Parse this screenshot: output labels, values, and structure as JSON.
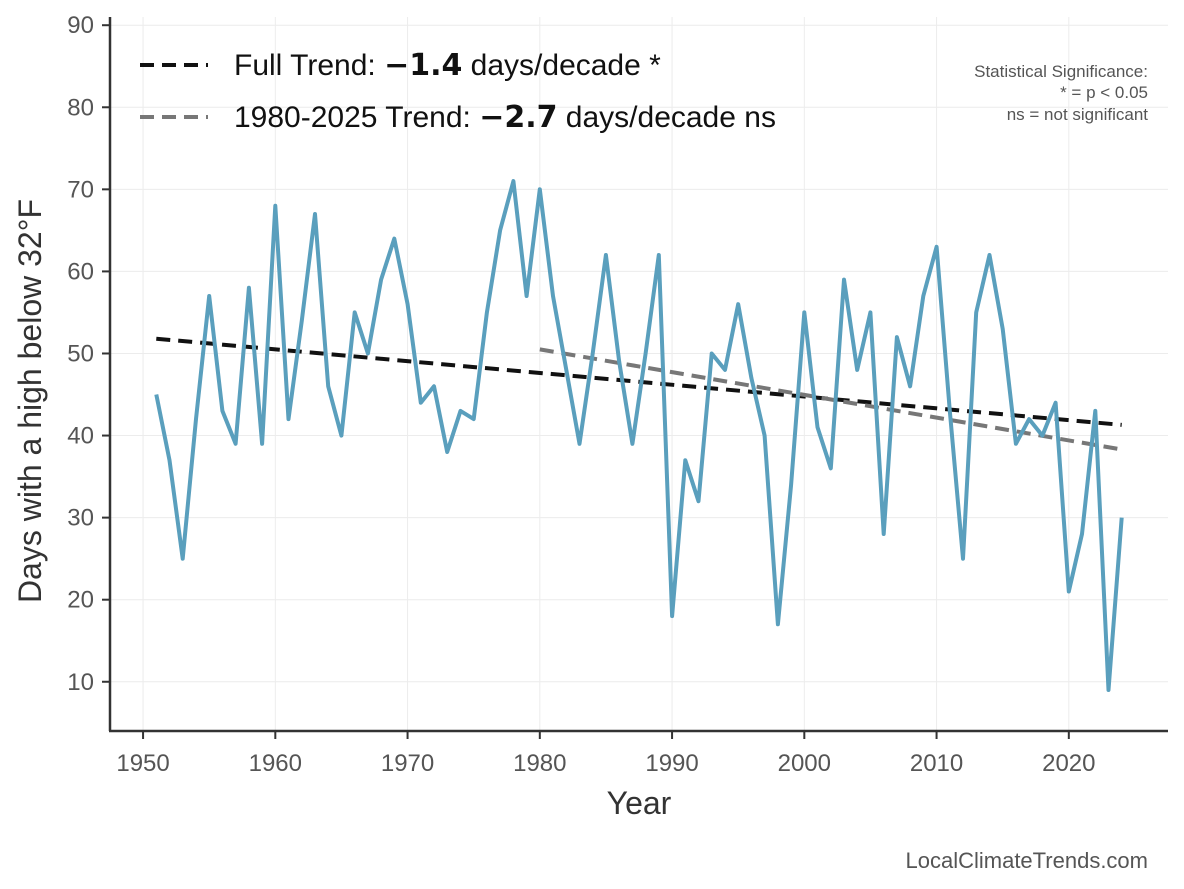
{
  "chart_data": {
    "type": "line",
    "title": "",
    "xlabel": "Year",
    "ylabel": "Days with a high below 32°F",
    "xlim": [
      1947.5,
      2027.5
    ],
    "ylim": [
      4,
      91
    ],
    "xticks": [
      1950,
      1960,
      1970,
      1980,
      1990,
      2000,
      2010,
      2020
    ],
    "yticks": [
      10,
      20,
      30,
      40,
      50,
      60,
      70,
      80,
      90
    ],
    "grid": true,
    "colors": {
      "series": "#5a9fbd",
      "full_trend": "#111111",
      "recent_trend": "#777777",
      "axis": "#333333",
      "grid": "#ececec"
    },
    "series": [
      {
        "name": "Days with a high below 32°F",
        "x": [
          1951,
          1952,
          1953,
          1954,
          1955,
          1956,
          1957,
          1958,
          1959,
          1960,
          1961,
          1962,
          1963,
          1964,
          1965,
          1966,
          1967,
          1968,
          1969,
          1970,
          1971,
          1972,
          1973,
          1974,
          1975,
          1976,
          1977,
          1978,
          1979,
          1980,
          1981,
          1982,
          1983,
          1984,
          1985,
          1986,
          1987,
          1988,
          1989,
          1990,
          1991,
          1992,
          1993,
          1994,
          1995,
          1996,
          1997,
          1998,
          1999,
          2000,
          2001,
          2002,
          2003,
          2004,
          2005,
          2006,
          2007,
          2008,
          2009,
          2010,
          2011,
          2012,
          2013,
          2014,
          2015,
          2016,
          2017,
          2018,
          2019,
          2020,
          2021,
          2022,
          2023,
          2024
        ],
        "values": [
          45,
          37,
          25,
          42,
          57,
          43,
          39,
          58,
          39,
          68,
          42,
          54,
          67,
          46,
          40,
          55,
          50,
          59,
          64,
          56,
          44,
          46,
          38,
          43,
          42,
          55,
          65,
          71,
          57,
          70,
          57,
          48,
          39,
          50,
          62,
          49,
          39,
          50,
          62,
          18,
          37,
          32,
          50,
          48,
          56,
          47,
          40,
          17,
          34,
          55,
          41,
          36,
          59,
          48,
          55,
          28,
          52,
          46,
          57,
          63,
          43,
          25,
          55,
          62,
          53,
          39,
          42,
          40,
          44,
          21,
          28,
          43,
          9,
          30
        ]
      }
    ],
    "trends": [
      {
        "name": "Full Trend",
        "x": [
          1951,
          2024
        ],
        "values": [
          51.8,
          41.3
        ]
      },
      {
        "name": "1980-2025 Trend",
        "x": [
          1980,
          2024
        ],
        "values": [
          50.5,
          38.3
        ]
      }
    ],
    "legend": [
      {
        "prefix": "Full Trend: ",
        "value": "−1.4",
        "suffix": " days/decade *"
      },
      {
        "prefix": "1980-2025 Trend: ",
        "value": "−2.7",
        "suffix": " days/decade ns"
      }
    ],
    "significance_note": [
      "Statistical Significance:",
      "* = p < 0.05",
      "ns = not significant"
    ],
    "source": "LocalClimateTrends.com"
  }
}
